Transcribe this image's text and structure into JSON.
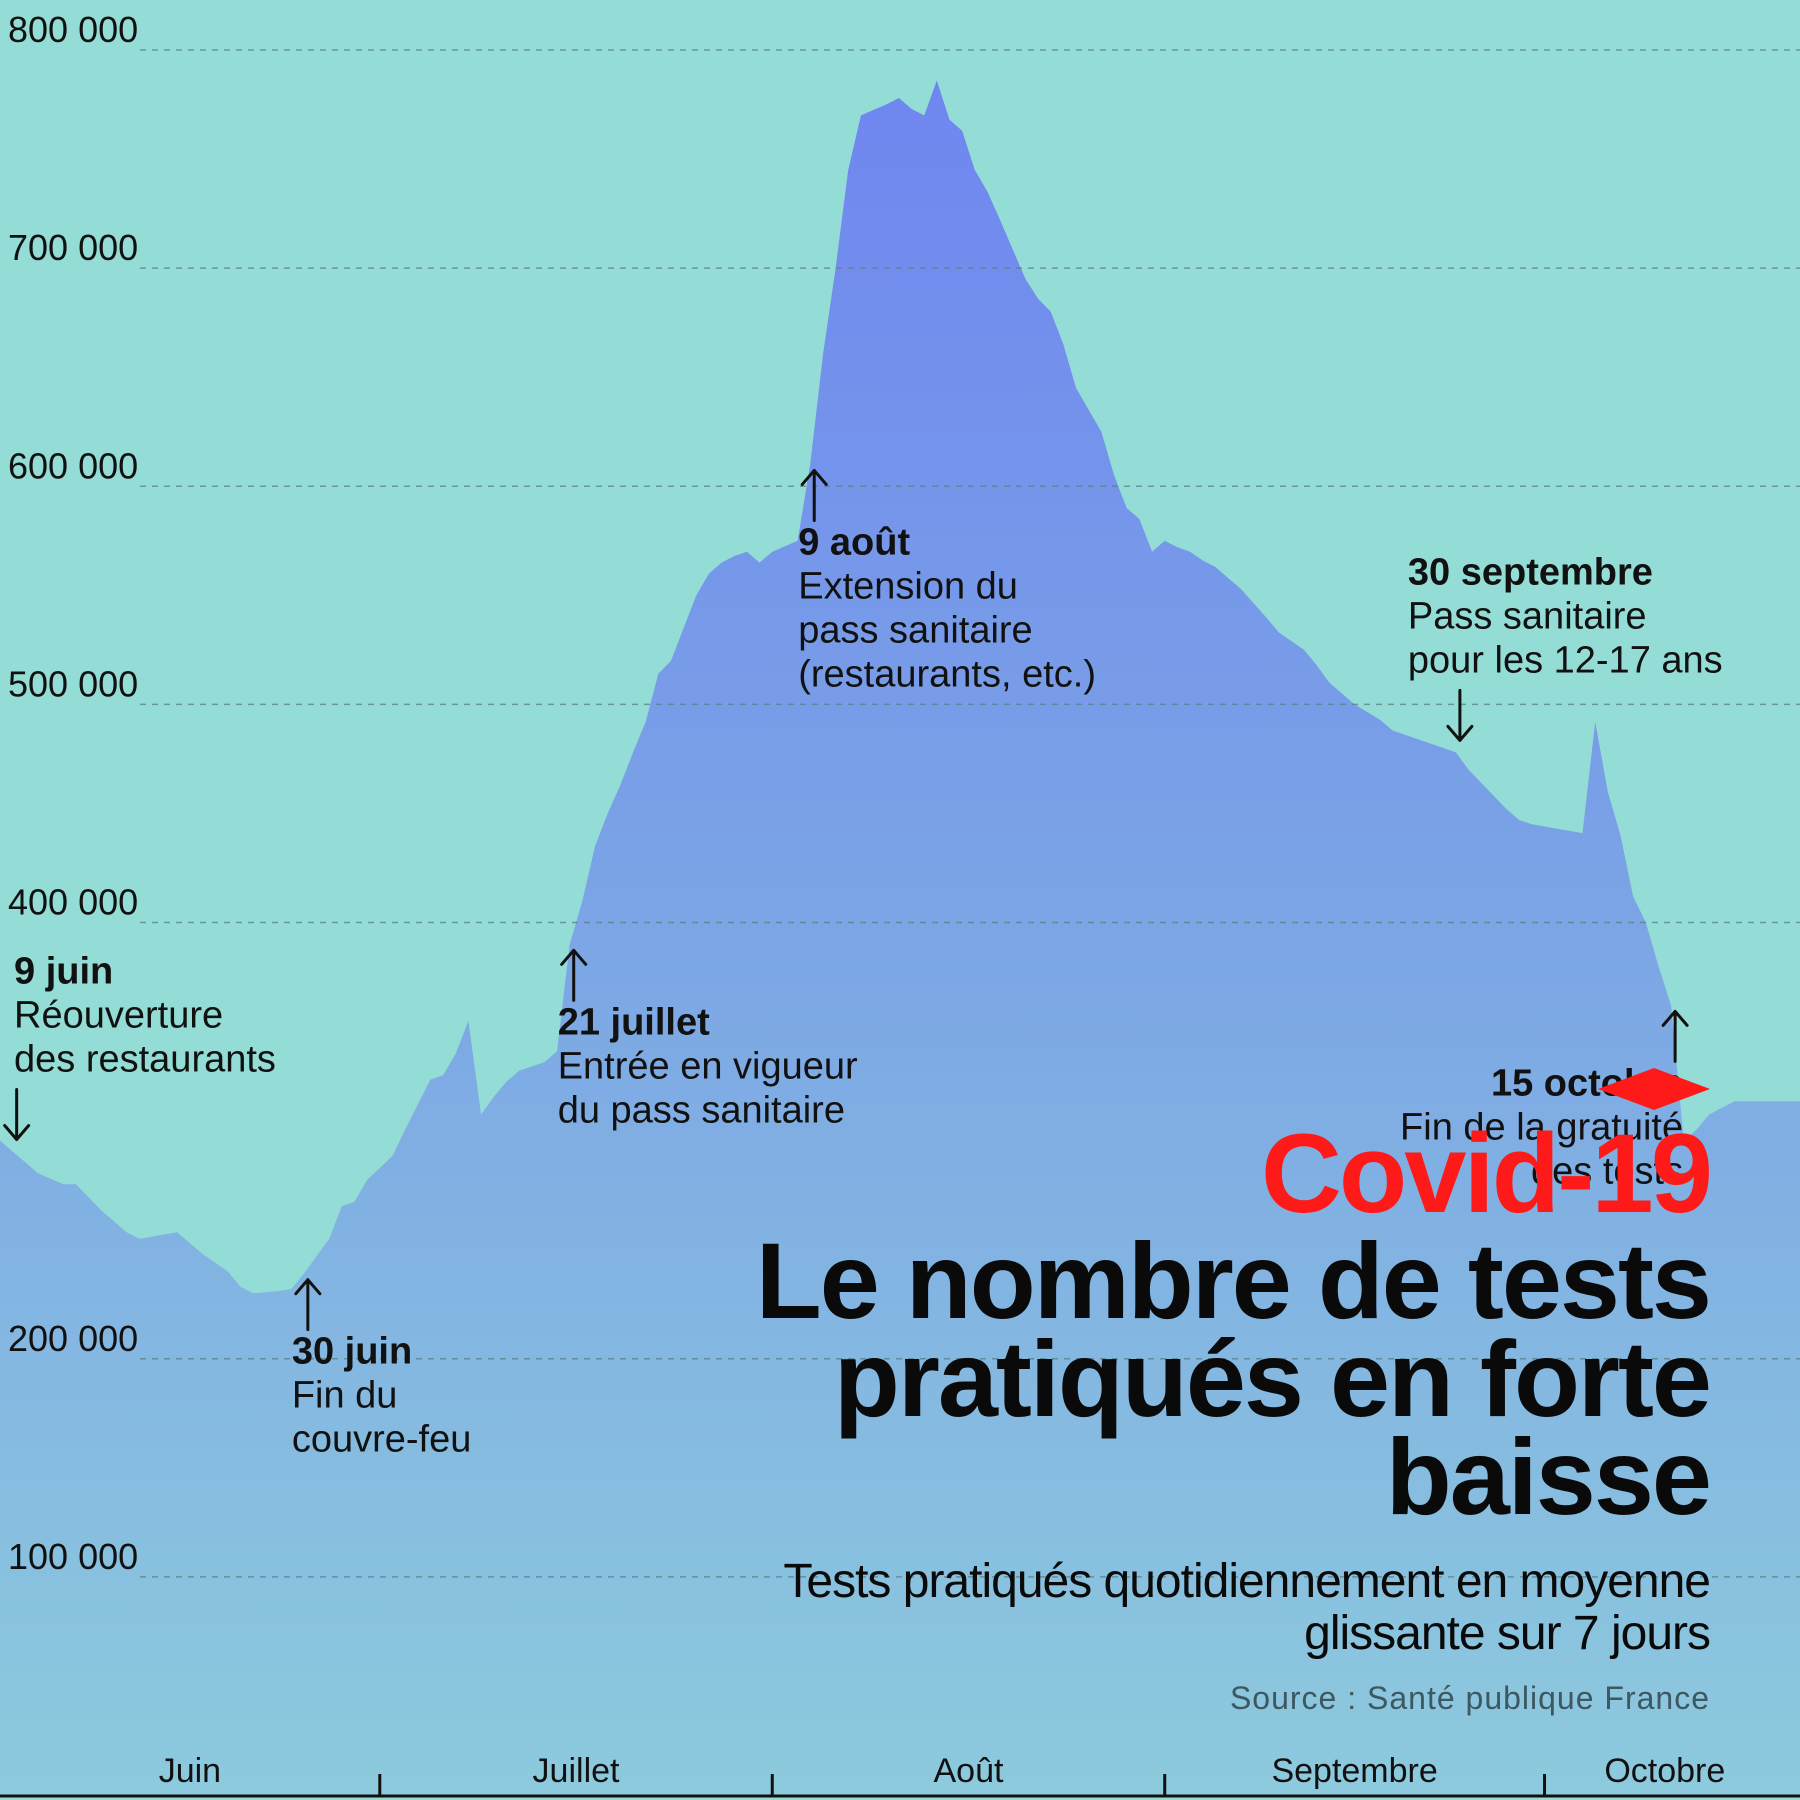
{
  "chart_data": {
    "type": "area",
    "title": "Le nombre de tests pratiqués en forte baisse",
    "kicker": "Covid-19",
    "subtitle": "Tests pratiqués quotidiennement en moyenne glissante sur 7 jours",
    "source": "Source : Santé publique France",
    "ylim": [
      0,
      800000
    ],
    "yticks": [
      {
        "value": 100000,
        "label": "100 000"
      },
      {
        "value": 200000,
        "label": "200 000"
      },
      {
        "value": 400000,
        "label": "400 000"
      },
      {
        "value": 500000,
        "label": "500 000"
      },
      {
        "value": 600000,
        "label": "600 000"
      },
      {
        "value": 700000,
        "label": "700 000"
      },
      {
        "value": 800000,
        "label": "800 000"
      }
    ],
    "grid": true,
    "months": [
      {
        "label": "Juin",
        "start_day": 0
      },
      {
        "label": "Juillet",
        "start_day": 30
      },
      {
        "label": "Août",
        "start_day": 61
      },
      {
        "label": "Septembre",
        "start_day": 92
      },
      {
        "label": "Octobre",
        "start_day": 122
      }
    ],
    "x_end_day": 141,
    "x_note": "day 0 = 1 juin",
    "series": [
      {
        "values": [
          [
            0,
            300000
          ],
          [
            1,
            295000
          ],
          [
            3,
            285000
          ],
          [
            5,
            280000
          ],
          [
            6,
            280000
          ],
          [
            8,
            268000
          ],
          [
            10,
            258000
          ],
          [
            11,
            255000
          ],
          [
            13,
            257000
          ],
          [
            14,
            258000
          ],
          [
            16,
            248000
          ],
          [
            18,
            240000
          ],
          [
            19,
            233000
          ],
          [
            20,
            230000
          ],
          [
            22,
            231000
          ],
          [
            23,
            232000
          ],
          [
            24,
            239000
          ],
          [
            26,
            255000
          ],
          [
            27,
            270000
          ],
          [
            28,
            272000
          ],
          [
            29,
            282000
          ],
          [
            31,
            293000
          ],
          [
            32,
            305000
          ],
          [
            34,
            328000
          ],
          [
            35,
            330000
          ],
          [
            36,
            340000
          ],
          [
            37,
            355000
          ],
          [
            38,
            312000
          ],
          [
            39,
            320000
          ],
          [
            40,
            327000
          ],
          [
            41,
            332000
          ],
          [
            43,
            336000
          ],
          [
            44,
            341000
          ],
          [
            45,
            390000
          ],
          [
            46,
            410000
          ],
          [
            47,
            435000
          ],
          [
            48,
            450000
          ],
          [
            49,
            463000
          ],
          [
            50,
            478000
          ],
          [
            51,
            492000
          ],
          [
            52,
            514000
          ],
          [
            53,
            520000
          ],
          [
            54,
            535000
          ],
          [
            55,
            550000
          ],
          [
            56,
            560000
          ],
          [
            57,
            565000
          ],
          [
            58,
            568000
          ],
          [
            59,
            570000
          ],
          [
            60,
            565000
          ],
          [
            61,
            570000
          ],
          [
            63,
            575000
          ],
          [
            64,
            610000
          ],
          [
            65,
            660000
          ],
          [
            66,
            700000
          ],
          [
            67,
            745000
          ],
          [
            68,
            770000
          ],
          [
            70,
            775000
          ],
          [
            71,
            778000
          ],
          [
            72,
            773000
          ],
          [
            73,
            770000
          ],
          [
            74,
            786000
          ],
          [
            75,
            768000
          ],
          [
            76,
            763000
          ],
          [
            77,
            745000
          ],
          [
            78,
            735000
          ],
          [
            79,
            722000
          ],
          [
            81,
            695000
          ],
          [
            82,
            686000
          ],
          [
            83,
            680000
          ],
          [
            84,
            665000
          ],
          [
            85,
            645000
          ],
          [
            87,
            625000
          ],
          [
            88,
            605000
          ],
          [
            89,
            590000
          ],
          [
            90,
            585000
          ],
          [
            91,
            570000
          ],
          [
            92,
            575000
          ],
          [
            93,
            572000
          ],
          [
            94,
            570000
          ],
          [
            95,
            566000
          ],
          [
            96,
            563000
          ],
          [
            97,
            558000
          ],
          [
            98,
            553000
          ],
          [
            100,
            540000
          ],
          [
            101,
            533000
          ],
          [
            103,
            525000
          ],
          [
            104,
            518000
          ],
          [
            105,
            510000
          ],
          [
            107,
            500000
          ],
          [
            109,
            493000
          ],
          [
            110,
            488000
          ],
          [
            112,
            484000
          ],
          [
            113,
            482000
          ],
          [
            115,
            478000
          ],
          [
            116,
            470000
          ],
          [
            118,
            458000
          ],
          [
            119,
            452000
          ],
          [
            120,
            447000
          ],
          [
            121,
            445000
          ],
          [
            123,
            443000
          ],
          [
            124,
            442000
          ],
          [
            125,
            441000
          ],
          [
            126,
            492000
          ],
          [
            127,
            460000
          ],
          [
            128,
            440000
          ],
          [
            129,
            412000
          ],
          [
            130,
            400000
          ],
          [
            131,
            380000
          ],
          [
            132,
            362000
          ],
          [
            133,
            300000
          ],
          [
            134,
            305000
          ],
          [
            135,
            312000
          ],
          [
            136,
            315000
          ],
          [
            137,
            318000
          ],
          [
            138,
            318000
          ],
          [
            139,
            318000
          ],
          [
            141,
            318000
          ]
        ]
      }
    ],
    "annotations": [
      {
        "day": 1,
        "arrow": "down",
        "date": "9 juin",
        "lines": [
          "Réouverture",
          "des restaurants"
        ]
      },
      {
        "day": 24,
        "arrow": "up",
        "date": "30 juin",
        "lines": [
          "Fin du",
          "couvre-feu"
        ]
      },
      {
        "day": 45,
        "arrow": "up",
        "date": "21 juillet",
        "lines": [
          "Entrée en vigueur",
          "du pass sanitaire"
        ]
      },
      {
        "day": 64,
        "arrow": "up",
        "date": "9 août",
        "lines": [
          "Extension du",
          "pass sanitaire",
          "(restaurants, etc.)"
        ]
      },
      {
        "day": 115,
        "arrow": "down",
        "date": "30 septembre",
        "lines": [
          "Pass sanitaire",
          "pour les 12-17 ans"
        ]
      },
      {
        "day": 132,
        "arrow": "up",
        "date": "15 octobre",
        "lines": [
          "Fin de la gratuité",
          "des tests"
        ]
      }
    ]
  }
}
